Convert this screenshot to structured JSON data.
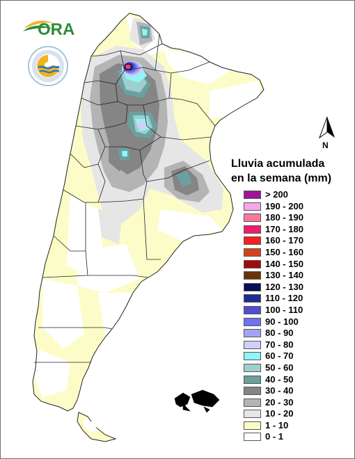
{
  "logos": {
    "ora": {
      "text": "ORA",
      "icon": "ora-leaf-logo",
      "colors": {
        "text": "#2e8b3a",
        "leaf": "#f0b41e"
      }
    },
    "smn": {
      "icon": "smn-seal-logo",
      "ring_text": "SERVICIO METEOROLÓGICO NACIONAL · ARGENTINA"
    }
  },
  "north_arrow": {
    "label": "N",
    "icon": "north-arrow-icon"
  },
  "legend": {
    "title_lines": [
      "Lluvia acumulada",
      "en la semana (mm)"
    ],
    "items": [
      {
        "label": "> 200",
        "color": "#a0129a"
      },
      {
        "label": "190 - 200",
        "color": "#f7a6ea"
      },
      {
        "label": "180 - 190",
        "color": "#f7799e"
      },
      {
        "label": "170 - 180",
        "color": "#f01c6e"
      },
      {
        "label": "160 - 170",
        "color": "#f52020"
      },
      {
        "label": "150 - 160",
        "color": "#d6421a"
      },
      {
        "label": "140 - 150",
        "color": "#a00c0c"
      },
      {
        "label": "130 - 140",
        "color": "#6b3206"
      },
      {
        "label": "120 - 130",
        "color": "#0c0c5a"
      },
      {
        "label": "110 - 120",
        "color": "#1c2e8f"
      },
      {
        "label": "100 - 110",
        "color": "#4f4fcf"
      },
      {
        "label": "90 - 100",
        "color": "#7070f5"
      },
      {
        "label": "80 - 90",
        "color": "#a3a3f5"
      },
      {
        "label": "70 - 80",
        "color": "#cfcff8"
      },
      {
        "label": "60 - 70",
        "color": "#8ff5f5"
      },
      {
        "label": "50 - 60",
        "color": "#9fcece"
      },
      {
        "label": "40 - 50",
        "color": "#6ba0a0"
      },
      {
        "label": "30 - 40",
        "color": "#858585"
      },
      {
        "label": "20 - 30",
        "color": "#b4b4b4"
      },
      {
        "label": "10 - 20",
        "color": "#e6e6e6"
      },
      {
        "label": "1 - 10",
        "color": "#fcfcc8"
      },
      {
        "label": "0 - 1",
        "color": "#ffffff"
      }
    ]
  }
}
